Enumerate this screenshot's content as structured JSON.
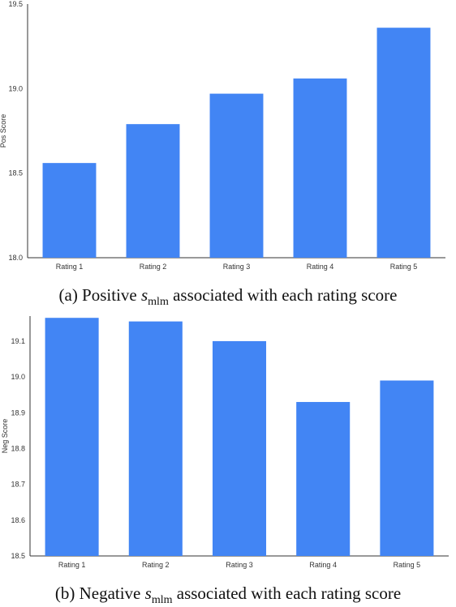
{
  "chart_data": [
    {
      "type": "bar",
      "categories": [
        "Rating 1",
        "Rating 2",
        "Rating 3",
        "Rating 4",
        "Rating 5"
      ],
      "values": [
        18.56,
        18.79,
        18.97,
        19.06,
        19.36
      ],
      "ylabel": "Pos Score",
      "xlabel": "",
      "ylim": [
        18.0,
        19.5
      ],
      "yticks": [
        "18.0",
        "18.5",
        "19.0",
        "19.5"
      ],
      "bar_color": "#4285f4",
      "grid": false
    },
    {
      "type": "bar",
      "categories": [
        "Rating 1",
        "Rating 2",
        "Rating 3",
        "Rating 4",
        "Rating 5"
      ],
      "values": [
        19.165,
        19.155,
        19.1,
        18.93,
        18.99
      ],
      "ylabel": "Neg Score",
      "xlabel": "",
      "ylim": [
        18.5,
        19.17
      ],
      "yticks": [
        "18.5",
        "18.6",
        "18.7",
        "18.8",
        "18.9",
        "19.0",
        "19.1"
      ],
      "bar_color": "#4285f4",
      "grid": false
    }
  ],
  "captions": {
    "a": {
      "prefix": "(a) Positive ",
      "symbol": "s",
      "subscript": "mlm",
      "suffix": " associated with each rating score"
    },
    "b": {
      "prefix": "(b) Negative ",
      "symbol": "s",
      "subscript": "mlm",
      "suffix": " associated with each rating score"
    }
  }
}
